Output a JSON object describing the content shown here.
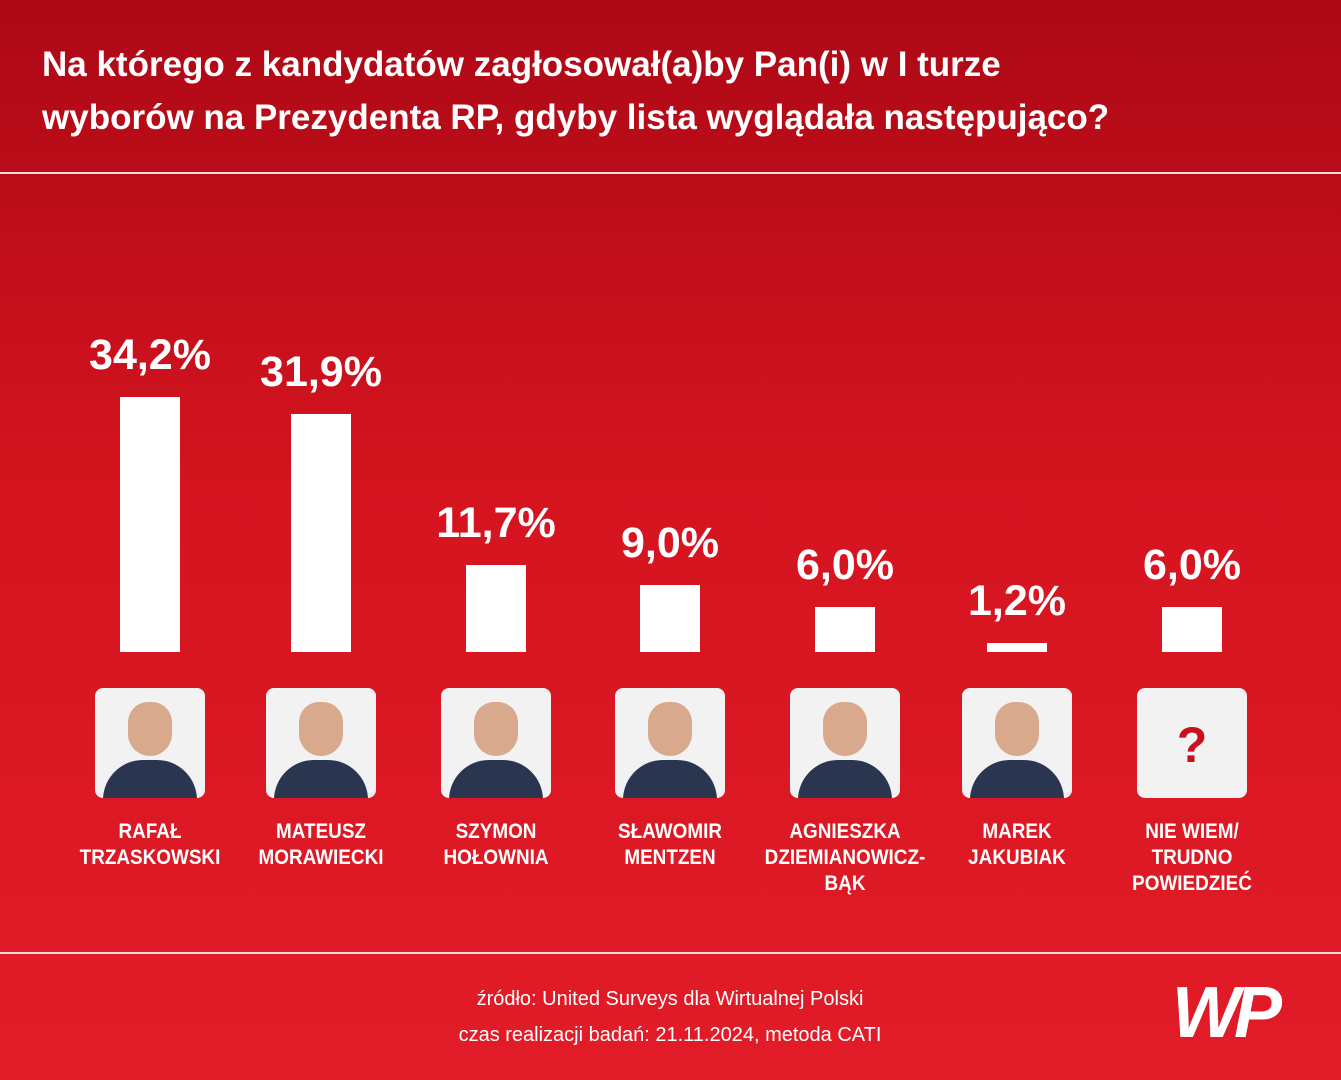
{
  "chart_data": {
    "type": "bar",
    "title": "Na którego z kandydatów zagłosował(a)by Pan(i) w I turze\nwyborów na Prezydenta RP, gdyby lista wyglądała następująco?",
    "categories": [
      "RAFAŁ\nTRZASKOWSKI",
      "MATEUSZ\nMORAWIECKI",
      "SZYMON\nHOŁOWNIA",
      "SŁAWOMIR\nMENTZEN",
      "AGNIESZKA\nDZIEMIANOWICZ-BĄK",
      "MAREK\nJAKUBIAK",
      "NIE WIEM/\nTRUDNO\nPOWIEDZIEĆ"
    ],
    "values": [
      34.2,
      31.9,
      11.7,
      9.0,
      6.0,
      1.2,
      6.0
    ],
    "value_labels": [
      "34,2%",
      "31,9%",
      "11,7%",
      "9,0%",
      "6,0%",
      "1,2%",
      "6,0%"
    ],
    "color": "#ffffff",
    "unknown_icon": "?",
    "source": "źródło: United Surveys dla Wirtualnej Polski",
    "note": "czas realizacji badań: 21.11.2024, metoda CATI",
    "logo": "WP"
  }
}
